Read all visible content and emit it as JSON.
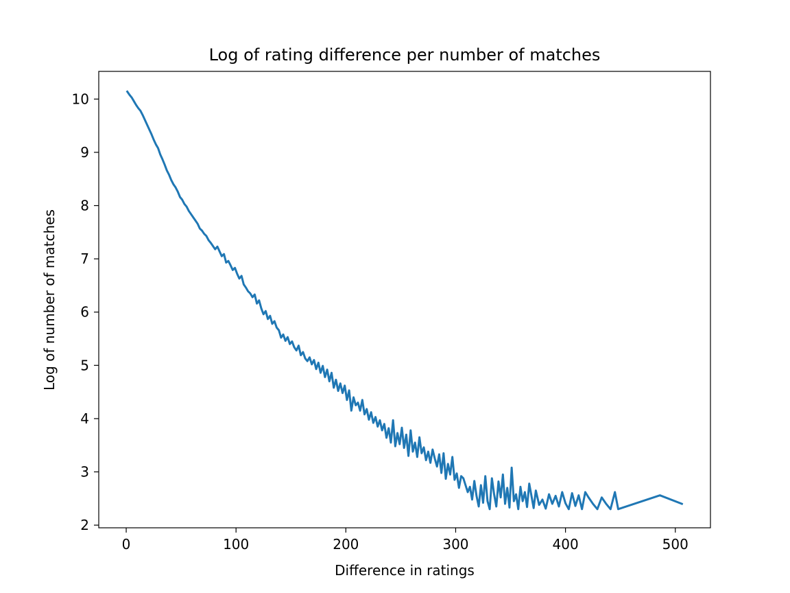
{
  "chart_data": {
    "type": "line",
    "title": "Log of rating difference per number of matches",
    "xlabel": "Difference in ratings",
    "ylabel": "Log of number of matches",
    "xlim": [
      -25,
      532
    ],
    "ylim": [
      1.95,
      10.52
    ],
    "xticks": [
      0,
      100,
      200,
      300,
      400,
      500
    ],
    "yticks": [
      2,
      3,
      4,
      5,
      6,
      7,
      8,
      9,
      10
    ],
    "xtick_labels": [
      "0",
      "100",
      "200",
      "300",
      "400",
      "500"
    ],
    "ytick_labels": [
      "2",
      "3",
      "4",
      "5",
      "6",
      "7",
      "8",
      "9",
      "10"
    ],
    "grid": false,
    "legend": "none",
    "line_color": "#1f77b4",
    "series": [
      {
        "x": [
          1,
          3,
          5,
          7,
          9,
          11,
          13,
          15,
          17,
          19,
          21,
          23,
          25,
          27,
          29,
          31,
          33,
          35,
          37,
          39,
          41,
          43,
          45,
          47,
          49,
          51,
          53,
          55,
          57,
          59,
          61,
          63,
          65,
          67,
          69,
          71,
          73,
          75,
          77,
          79,
          81,
          83,
          85,
          87,
          89,
          91,
          93,
          95,
          97,
          99,
          101,
          103,
          105,
          107,
          109,
          111,
          113,
          115,
          117,
          119,
          121,
          123,
          125,
          127,
          129,
          131,
          133,
          135,
          137,
          139,
          141,
          143,
          145,
          147,
          149,
          151,
          153,
          155,
          157,
          159,
          161,
          163,
          165,
          167,
          169,
          171,
          173,
          175,
          177,
          179,
          181,
          183,
          185,
          187,
          189,
          191,
          193,
          195,
          197,
          199,
          201,
          203,
          205,
          207,
          209,
          211,
          213,
          215,
          217,
          219,
          221,
          223,
          225,
          227,
          229,
          231,
          233,
          235,
          237,
          239,
          241,
          243,
          245,
          247,
          249,
          251,
          253,
          255,
          257,
          259,
          261,
          263,
          265,
          267,
          269,
          271,
          273,
          275,
          277,
          279,
          281,
          283,
          285,
          287,
          289,
          291,
          293,
          295,
          297,
          299,
          301,
          303,
          305,
          307,
          309,
          311,
          313,
          315,
          317,
          319,
          321,
          323,
          325,
          327,
          329,
          331,
          333,
          335,
          337,
          339,
          341,
          343,
          345,
          347,
          349,
          351,
          353,
          355,
          357,
          359,
          361,
          363,
          365,
          367,
          369,
          371,
          373,
          376,
          379,
          382,
          385,
          388,
          391,
          394,
          397,
          400,
          403,
          406,
          409,
          412,
          415,
          418,
          421,
          425,
          429,
          433,
          437,
          441,
          445,
          448,
          486,
          506
        ],
        "y": [
          10.14,
          10.08,
          10.03,
          9.96,
          9.89,
          9.83,
          9.78,
          9.7,
          9.61,
          9.52,
          9.43,
          9.34,
          9.24,
          9.15,
          9.08,
          8.96,
          8.87,
          8.77,
          8.66,
          8.58,
          8.48,
          8.4,
          8.34,
          8.26,
          8.16,
          8.11,
          8.03,
          7.98,
          7.9,
          7.84,
          7.78,
          7.72,
          7.66,
          7.57,
          7.53,
          7.47,
          7.43,
          7.35,
          7.3,
          7.24,
          7.18,
          7.23,
          7.14,
          7.05,
          7.09,
          6.93,
          6.96,
          6.88,
          6.79,
          6.83,
          6.72,
          6.63,
          6.68,
          6.52,
          6.46,
          6.39,
          6.35,
          6.28,
          6.33,
          6.16,
          6.22,
          6.07,
          5.96,
          6.02,
          5.87,
          5.93,
          5.78,
          5.83,
          5.71,
          5.66,
          5.52,
          5.58,
          5.46,
          5.53,
          5.4,
          5.45,
          5.34,
          5.28,
          5.37,
          5.19,
          5.25,
          5.13,
          5.08,
          5.15,
          5.02,
          5.1,
          4.93,
          5.05,
          4.86,
          4.99,
          4.78,
          4.92,
          4.7,
          4.86,
          4.58,
          4.73,
          4.52,
          4.66,
          4.48,
          4.62,
          4.35,
          4.53,
          4.15,
          4.4,
          4.25,
          4.3,
          4.15,
          4.35,
          4.08,
          4.18,
          3.98,
          4.12,
          3.92,
          4.03,
          3.85,
          3.97,
          3.78,
          3.9,
          3.64,
          3.82,
          3.55,
          3.97,
          3.48,
          3.73,
          3.52,
          3.83,
          3.45,
          3.7,
          3.3,
          3.78,
          3.38,
          3.55,
          3.28,
          3.65,
          3.35,
          3.46,
          3.22,
          3.38,
          3.17,
          3.42,
          3.25,
          3.1,
          3.33,
          2.98,
          3.35,
          2.87,
          3.15,
          2.95,
          3.28,
          2.85,
          2.97,
          2.7,
          2.92,
          2.88,
          2.75,
          2.62,
          2.72,
          2.48,
          2.83,
          2.55,
          2.35,
          2.75,
          2.42,
          2.92,
          2.45,
          2.3,
          2.88,
          2.58,
          2.35,
          2.82,
          2.52,
          2.95,
          2.4,
          2.7,
          2.33,
          3.08,
          2.45,
          2.58,
          2.3,
          2.72,
          2.45,
          2.62,
          2.34,
          2.78,
          2.55,
          2.32,
          2.65,
          2.38,
          2.48,
          2.31,
          2.58,
          2.4,
          2.55,
          2.35,
          2.62,
          2.41,
          2.3,
          2.6,
          2.36,
          2.56,
          2.3,
          2.62,
          2.52,
          2.4,
          2.3,
          2.52,
          2.4,
          2.3,
          2.62,
          2.3,
          2.56,
          2.4
        ]
      }
    ]
  }
}
